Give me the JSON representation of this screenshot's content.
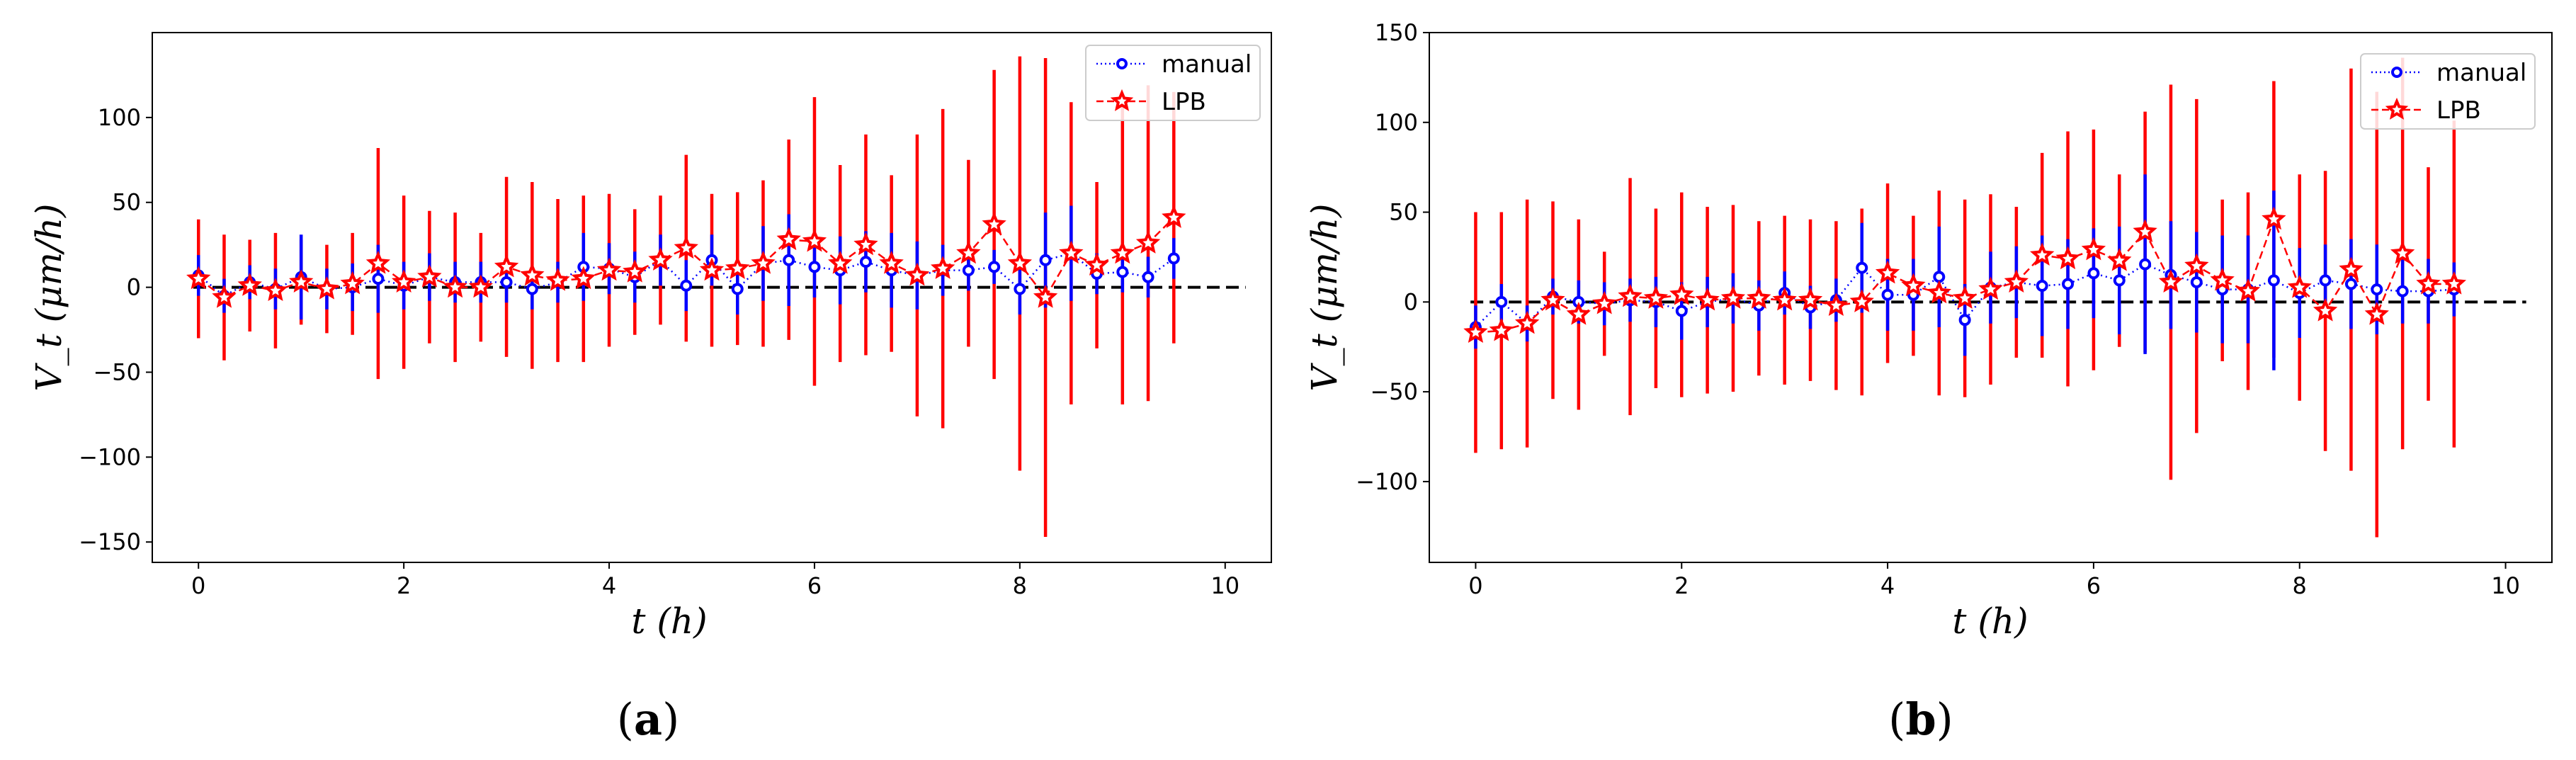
{
  "chart_data": [
    {
      "type": "line",
      "panel": "a",
      "caption": {
        "open": "(",
        "letter": "a",
        "close": ")"
      },
      "ylabel": "V_t (μm/h)",
      "xlabel": "t (h)",
      "xlim": [
        -0.45,
        10.45
      ],
      "ylim": [
        -162,
        150
      ],
      "xticks": [
        0,
        2,
        4,
        6,
        8,
        10
      ],
      "yticks": [
        -150,
        -100,
        -50,
        0,
        50,
        100
      ],
      "reference_line": 0,
      "legend": {
        "position": "top-right"
      },
      "x": [
        0,
        0.25,
        0.5,
        0.75,
        1.0,
        1.25,
        1.5,
        1.75,
        2.0,
        2.25,
        2.5,
        2.75,
        3.0,
        3.25,
        3.5,
        3.75,
        4.0,
        4.25,
        4.5,
        4.75,
        5.0,
        5.25,
        5.5,
        5.75,
        6.0,
        6.25,
        6.5,
        6.75,
        7.0,
        7.25,
        7.5,
        7.75,
        8.0,
        8.25,
        8.5,
        8.75,
        9.0,
        9.25,
        9.5
      ],
      "series": [
        {
          "name": "manual",
          "color": "#0000ff",
          "marker": "circle",
          "linestyle": "dotted",
          "values": [
            7,
            -5,
            3,
            -1,
            6,
            -1,
            0,
            5,
            1,
            6,
            3,
            3,
            3,
            -1,
            3,
            12,
            11,
            6,
            16,
            1,
            16,
            -1,
            14,
            16,
            12,
            10,
            15,
            10,
            7,
            10,
            10,
            12,
            -1,
            16,
            20,
            8,
            9,
            6,
            17
          ],
          "errors": [
            12,
            10,
            10,
            12,
            25,
            12,
            14,
            20,
            14,
            14,
            12,
            12,
            12,
            12,
            12,
            20,
            15,
            15,
            15,
            15,
            15,
            15,
            22,
            27,
            18,
            20,
            18,
            22,
            20,
            15,
            12,
            10,
            15,
            28,
            28,
            12,
            12,
            12,
            12
          ]
        },
        {
          "name": "LPB",
          "color": "#ff0000",
          "marker": "star",
          "linestyle": "dashed",
          "values": [
            5,
            -6,
            1,
            -2,
            3,
            -1,
            2,
            14,
            3,
            6,
            0,
            0,
            12,
            7,
            4,
            5,
            10,
            9,
            16,
            23,
            10,
            11,
            14,
            28,
            27,
            14,
            25,
            14,
            7,
            11,
            20,
            37,
            14,
            -6,
            20,
            13,
            20,
            26,
            41
          ],
          "errors": [
            35,
            37,
            27,
            34,
            25,
            26,
            30,
            68,
            51,
            39,
            44,
            32,
            53,
            55,
            48,
            49,
            45,
            37,
            38,
            55,
            45,
            45,
            49,
            59,
            85,
            58,
            65,
            52,
            83,
            94,
            55,
            91,
            122,
            141,
            89,
            49,
            89,
            93,
            74
          ]
        }
      ]
    },
    {
      "type": "line",
      "panel": "b",
      "caption": {
        "open": "(",
        "letter": "b",
        "close": ")"
      },
      "ylabel": "V_t (μm/h)",
      "xlabel": "t (h)",
      "xlim": [
        -0.45,
        10.45
      ],
      "ylim": [
        -145,
        150
      ],
      "xticks": [
        0,
        2,
        4,
        6,
        8,
        10
      ],
      "yticks": [
        -100,
        -50,
        0,
        50,
        100,
        150
      ],
      "reference_line": 0,
      "legend": {
        "position": "top-right"
      },
      "x": [
        0,
        0.25,
        0.5,
        0.75,
        1.0,
        1.25,
        1.5,
        1.75,
        2.0,
        2.25,
        2.5,
        2.75,
        3.0,
        3.25,
        3.5,
        3.75,
        4.0,
        4.25,
        4.5,
        4.75,
        5.0,
        5.25,
        5.5,
        5.75,
        6.0,
        6.25,
        6.5,
        6.75,
        7.0,
        7.25,
        7.5,
        7.75,
        8.0,
        8.25,
        8.5,
        8.75,
        9.0,
        9.25,
        9.5
      ],
      "series": [
        {
          "name": "manual",
          "color": "#0000ff",
          "marker": "circle",
          "linestyle": "dotted",
          "values": [
            -14,
            0,
            -12,
            3,
            0,
            -1,
            1,
            0,
            -5,
            0,
            2,
            -2,
            5,
            -3,
            1,
            19,
            4,
            4,
            14,
            -10,
            8,
            11,
            9,
            10,
            16,
            12,
            21,
            15,
            11,
            7,
            7,
            12,
            5,
            12,
            10,
            7,
            6,
            6,
            7
          ],
          "errors": [
            12,
            10,
            10,
            10,
            12,
            12,
            12,
            14,
            16,
            14,
            14,
            14,
            12,
            12,
            12,
            25,
            20,
            20,
            28,
            20,
            20,
            20,
            28,
            25,
            25,
            30,
            50,
            30,
            28,
            30,
            30,
            50,
            25,
            20,
            25,
            25,
            18,
            18,
            15
          ]
        },
        {
          "name": "LPB",
          "color": "#ff0000",
          "marker": "star",
          "linestyle": "dashed",
          "values": [
            -17,
            -16,
            -12,
            1,
            -7,
            -1,
            3,
            2,
            4,
            1,
            2,
            2,
            1,
            1,
            -2,
            0,
            16,
            9,
            5,
            2,
            7,
            11,
            26,
            24,
            29,
            23,
            39,
            11,
            20,
            12,
            6,
            46,
            8,
            -5,
            18,
            -7,
            27,
            10,
            10
          ],
          "errors": [
            67,
            66,
            69,
            55,
            53,
            29,
            66,
            50,
            57,
            52,
            52,
            43,
            47,
            45,
            47,
            52,
            50,
            39,
            57,
            55,
            53,
            42,
            57,
            71,
            67,
            48,
            67,
            110,
            93,
            45,
            55,
            77,
            63,
            78,
            112,
            124,
            109,
            65,
            91
          ]
        }
      ]
    }
  ]
}
